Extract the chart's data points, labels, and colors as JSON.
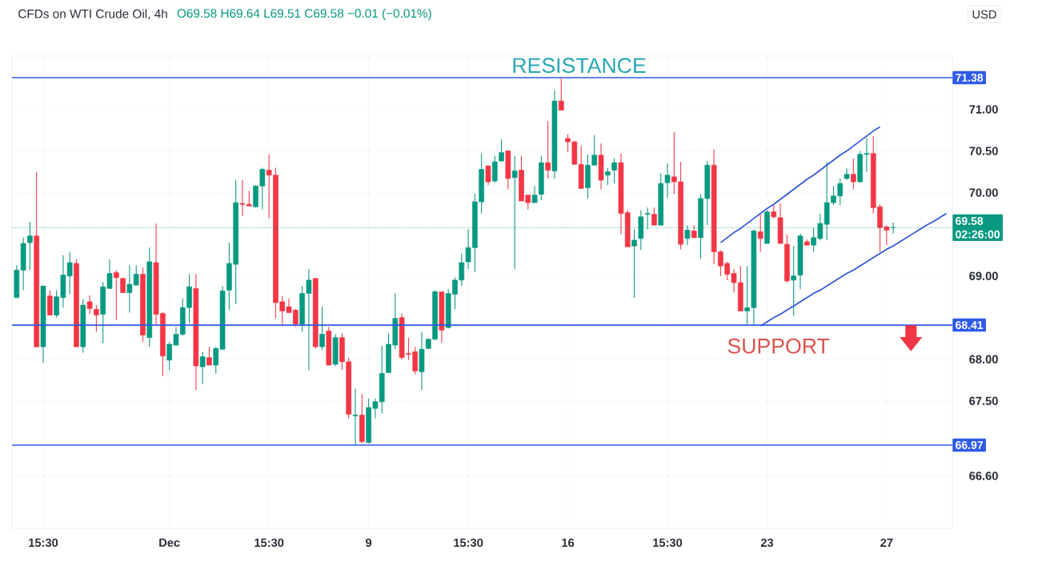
{
  "chart_data": {
    "type": "candlestick",
    "title": "CFDs on WTI Crude Oil, 4h",
    "subtitle": "O69.58 H69.64 L69.51 C69.58 −0.01 (−0.01%)",
    "ylabel": "USD",
    "categories": [
      null,
      null,
      null,
      null,
      "15:30",
      null,
      null,
      null,
      null,
      null,
      null,
      null,
      null,
      null,
      null,
      null,
      null,
      null,
      null,
      null,
      null,
      null,
      null,
      "Dec",
      null,
      null,
      null,
      null,
      null,
      null,
      null,
      null,
      null,
      null,
      null,
      null,
      null,
      null,
      "15:30",
      null,
      null,
      null,
      null,
      null,
      null,
      null,
      null,
      null,
      null,
      null,
      null,
      null,
      null,
      "9",
      null,
      null,
      null,
      null,
      null,
      null,
      null,
      null,
      null,
      null,
      null,
      null,
      null,
      null,
      "15:30",
      null,
      null,
      null,
      null,
      null,
      null,
      null,
      null,
      null,
      null,
      null,
      null,
      null,
      null,
      "16",
      null,
      null,
      null,
      null,
      null,
      null,
      null,
      null,
      null,
      null,
      null,
      null,
      null,
      null,
      "15:30",
      null,
      null,
      null,
      null,
      null,
      null,
      null,
      null,
      null,
      null,
      null,
      null,
      null,
      null,
      "23",
      null,
      null,
      null,
      null,
      null,
      null,
      null,
      null,
      null,
      null,
      null,
      null,
      null,
      null,
      null,
      null,
      null,
      "27",
      null,
      null,
      null,
      null,
      null,
      null,
      null,
      null,
      null
    ],
    "ohlc": [
      [
        68.74,
        69.13,
        68.74,
        69.07
      ],
      [
        69.07,
        69.46,
        68.83,
        69.39
      ],
      [
        69.4,
        69.65,
        69.07,
        69.48
      ],
      [
        69.48,
        70.25,
        68.15,
        68.15
      ],
      [
        68.15,
        68.88,
        67.96,
        68.88
      ],
      [
        68.76,
        68.83,
        68.53,
        68.53
      ],
      [
        68.53,
        68.83,
        68.5,
        68.75
      ],
      [
        68.74,
        69.25,
        68.62,
        69.01
      ],
      [
        69.0,
        69.29,
        68.78,
        69.16
      ],
      [
        69.15,
        69.2,
        68.15,
        68.15
      ],
      [
        68.15,
        68.72,
        68.08,
        68.65
      ],
      [
        68.69,
        68.77,
        68.54,
        68.61
      ],
      [
        68.6,
        68.65,
        68.33,
        68.53
      ],
      [
        68.54,
        68.93,
        68.19,
        68.87
      ],
      [
        68.85,
        69.2,
        68.85,
        69.03
      ],
      [
        69.04,
        69.07,
        68.47,
        68.98
      ],
      [
        68.97,
        68.98,
        68.8,
        68.8
      ],
      [
        68.8,
        69.13,
        68.56,
        68.9
      ],
      [
        68.89,
        69.13,
        68.89,
        69.02
      ],
      [
        69.02,
        69.1,
        68.21,
        68.29
      ],
      [
        68.26,
        69.34,
        68.15,
        69.17
      ],
      [
        69.16,
        69.63,
        68.42,
        68.54
      ],
      [
        68.55,
        68.57,
        67.8,
        68.04
      ],
      [
        67.99,
        68.21,
        67.87,
        68.18
      ],
      [
        68.17,
        68.39,
        68.17,
        68.3
      ],
      [
        68.3,
        68.73,
        68.28,
        68.62
      ],
      [
        68.62,
        69.02,
        68.44,
        68.87
      ],
      [
        68.85,
        69.02,
        67.63,
        67.92
      ],
      [
        67.91,
        68.09,
        67.7,
        68.03
      ],
      [
        68.02,
        68.15,
        67.93,
        67.93
      ],
      [
        67.93,
        68.15,
        67.83,
        68.13
      ],
      [
        68.12,
        68.88,
        68.12,
        68.82
      ],
      [
        68.83,
        69.4,
        68.59,
        69.15
      ],
      [
        69.14,
        70.15,
        68.66,
        69.88
      ],
      [
        69.87,
        70.15,
        69.72,
        69.86
      ],
      [
        69.86,
        70.02,
        69.84,
        69.84
      ],
      [
        69.83,
        70.09,
        69.82,
        70.08
      ],
      [
        70.08,
        70.3,
        69.8,
        70.28
      ],
      [
        70.27,
        70.46,
        69.69,
        70.21
      ],
      [
        70.21,
        70.3,
        68.49,
        68.68
      ],
      [
        68.69,
        68.76,
        68.4,
        68.58
      ],
      [
        68.63,
        68.73,
        68.56,
        68.56
      ],
      [
        68.59,
        68.6,
        68.39,
        68.42
      ],
      [
        68.42,
        68.88,
        68.33,
        68.79
      ],
      [
        68.79,
        69.08,
        67.87,
        68.95
      ],
      [
        68.97,
        68.97,
        68.13,
        68.15
      ],
      [
        68.15,
        68.63,
        68.11,
        68.3
      ],
      [
        68.34,
        68.39,
        67.93,
        67.93
      ],
      [
        67.94,
        68.3,
        67.92,
        68.26
      ],
      [
        68.26,
        68.31,
        67.87,
        67.97
      ],
      [
        67.97,
        68.02,
        67.29,
        67.34
      ],
      [
        67.32,
        67.65,
        66.97,
        67.33
      ],
      [
        67.33,
        67.58,
        66.99,
        67.01
      ],
      [
        67.0,
        67.53,
        66.99,
        67.42
      ],
      [
        67.41,
        67.53,
        67.29,
        67.49
      ],
      [
        67.49,
        68.16,
        67.35,
        67.83
      ],
      [
        67.84,
        68.31,
        67.83,
        68.18
      ],
      [
        68.17,
        68.79,
        68.12,
        68.49
      ],
      [
        68.5,
        68.55,
        68.0,
        68.02
      ],
      [
        68.07,
        68.26,
        67.99,
        68.06
      ],
      [
        68.09,
        68.15,
        67.82,
        67.86
      ],
      [
        67.85,
        68.33,
        67.63,
        68.12
      ],
      [
        68.13,
        68.25,
        68.12,
        68.24
      ],
      [
        68.24,
        68.83,
        68.23,
        68.81
      ],
      [
        68.81,
        68.81,
        68.2,
        68.35
      ],
      [
        68.38,
        68.84,
        68.37,
        68.79
      ],
      [
        68.78,
        68.98,
        68.6,
        68.95
      ],
      [
        68.95,
        69.27,
        68.88,
        69.16
      ],
      [
        69.17,
        69.56,
        69.08,
        69.34
      ],
      [
        69.34,
        69.99,
        69.05,
        69.89
      ],
      [
        69.89,
        70.47,
        69.75,
        70.28
      ],
      [
        70.32,
        70.33,
        70.09,
        70.13
      ],
      [
        70.14,
        70.44,
        70.12,
        70.37
      ],
      [
        70.38,
        70.64,
        70.37,
        70.48
      ],
      [
        70.5,
        70.51,
        70.04,
        70.17
      ],
      [
        70.18,
        70.44,
        69.08,
        70.26
      ],
      [
        70.27,
        70.44,
        69.9,
        69.9
      ],
      [
        69.97,
        69.98,
        69.8,
        69.88
      ],
      [
        69.88,
        70.08,
        69.88,
        69.97
      ],
      [
        69.98,
        70.44,
        69.91,
        70.36
      ],
      [
        70.36,
        70.86,
        70.17,
        70.27
      ],
      [
        70.26,
        71.23,
        70.17,
        71.1
      ],
      [
        71.1,
        71.38,
        70.99,
        70.99
      ],
      [
        70.65,
        70.7,
        70.49,
        70.61
      ],
      [
        70.61,
        70.62,
        70.34,
        70.34
      ],
      [
        70.34,
        70.56,
        70.05,
        70.05
      ],
      [
        70.06,
        70.46,
        69.93,
        70.33
      ],
      [
        70.33,
        70.69,
        70.33,
        70.45
      ],
      [
        70.45,
        70.59,
        70.04,
        70.15
      ],
      [
        70.21,
        70.3,
        70.09,
        70.25
      ],
      [
        70.27,
        70.41,
        70.11,
        70.36
      ],
      [
        70.36,
        70.47,
        69.5,
        69.75
      ],
      [
        69.76,
        69.79,
        69.35,
        69.35
      ],
      [
        69.36,
        69.56,
        68.74,
        69.43
      ],
      [
        69.45,
        69.79,
        69.31,
        69.71
      ],
      [
        69.74,
        69.82,
        69.56,
        69.75
      ],
      [
        69.74,
        69.82,
        69.61,
        69.61
      ],
      [
        69.61,
        70.23,
        69.61,
        70.11
      ],
      [
        70.12,
        70.35,
        69.94,
        70.21
      ],
      [
        70.19,
        70.73,
        69.98,
        70.13
      ],
      [
        70.13,
        70.37,
        69.32,
        69.38
      ],
      [
        69.45,
        69.61,
        69.37,
        69.55
      ],
      [
        69.54,
        69.61,
        69.46,
        69.46
      ],
      [
        69.46,
        69.98,
        69.21,
        69.93
      ],
      [
        69.93,
        70.38,
        69.61,
        70.33
      ],
      [
        70.33,
        70.52,
        69.14,
        69.29
      ],
      [
        69.29,
        69.31,
        69.0,
        69.12
      ],
      [
        69.15,
        69.17,
        68.95,
        69.02
      ],
      [
        69.03,
        69.08,
        68.8,
        68.92
      ],
      [
        68.92,
        69.12,
        68.58,
        68.58
      ],
      [
        68.58,
        69.12,
        68.41,
        68.62
      ],
      [
        68.62,
        69.56,
        68.41,
        69.54
      ],
      [
        69.53,
        69.74,
        69.29,
        69.45
      ],
      [
        69.39,
        69.79,
        69.39,
        69.77
      ],
      [
        69.77,
        69.85,
        69.69,
        69.71
      ],
      [
        69.7,
        69.87,
        69.39,
        69.39
      ],
      [
        69.38,
        69.5,
        68.92,
        68.94
      ],
      [
        68.95,
        69.36,
        68.52,
        69.0
      ],
      [
        69.01,
        69.51,
        68.84,
        69.48
      ],
      [
        69.41,
        69.44,
        69.37,
        69.37
      ],
      [
        69.37,
        69.58,
        69.29,
        69.46
      ],
      [
        69.45,
        69.75,
        69.43,
        69.63
      ],
      [
        69.62,
        70.37,
        69.43,
        69.88
      ],
      [
        69.88,
        70.08,
        69.85,
        69.96
      ],
      [
        69.96,
        70.17,
        69.85,
        70.11
      ],
      [
        70.17,
        70.29,
        70.15,
        70.22
      ],
      [
        70.22,
        70.41,
        70.04,
        70.13
      ],
      [
        70.13,
        70.5,
        70.12,
        70.46
      ],
      [
        70.46,
        70.66,
        70.25,
        70.47
      ],
      [
        70.47,
        70.68,
        69.75,
        69.82
      ],
      [
        69.83,
        69.86,
        69.29,
        69.58
      ],
      [
        69.59,
        69.61,
        69.37,
        69.55
      ],
      [
        69.58,
        69.64,
        69.51,
        69.58
      ],
      null,
      null,
      null,
      null,
      null,
      null,
      null,
      null
    ],
    "series": [
      {
        "type": "line",
        "color": "#3057d5",
        "values": [
          null,
          null,
          null,
          null,
          null,
          null,
          null,
          null,
          null,
          null,
          null,
          null,
          null,
          null,
          null,
          null,
          null,
          null,
          null,
          null,
          null,
          null,
          null,
          null,
          null,
          null,
          null,
          null,
          null,
          null,
          null,
          null,
          null,
          null,
          null,
          null,
          null,
          null,
          null,
          null,
          null,
          null,
          null,
          null,
          null,
          null,
          null,
          null,
          null,
          null,
          null,
          null,
          null,
          null,
          null,
          null,
          null,
          null,
          null,
          null,
          null,
          null,
          null,
          null,
          null,
          null,
          null,
          null,
          null,
          null,
          null,
          null,
          null,
          null,
          null,
          null,
          null,
          null,
          null,
          null,
          null,
          null,
          null,
          null,
          null,
          null,
          null,
          null,
          null,
          null,
          null,
          null,
          null,
          null,
          null,
          null,
          null,
          null,
          null,
          null,
          null,
          null,
          null,
          null,
          null,
          null,
          69.4,
          69.46,
          69.52,
          69.57,
          69.63,
          69.69,
          69.75,
          69.81,
          69.86,
          69.92,
          69.98,
          70.04,
          70.1,
          70.16,
          70.21,
          70.27,
          70.33,
          70.39,
          70.45,
          70.5,
          70.56,
          70.62,
          70.68,
          70.74,
          70.79,
          null,
          null,
          null,
          null,
          null,
          null,
          null,
          null,
          null,
          null
        ]
      },
      {
        "type": "line",
        "color": "#3057d5",
        "values": [
          null,
          null,
          null,
          null,
          null,
          null,
          null,
          null,
          null,
          null,
          null,
          null,
          null,
          null,
          null,
          null,
          null,
          null,
          null,
          null,
          null,
          null,
          null,
          null,
          null,
          null,
          null,
          null,
          null,
          null,
          null,
          null,
          null,
          null,
          null,
          null,
          null,
          null,
          null,
          null,
          null,
          null,
          null,
          null,
          null,
          null,
          null,
          null,
          null,
          null,
          null,
          null,
          null,
          null,
          null,
          null,
          null,
          null,
          null,
          null,
          null,
          null,
          null,
          null,
          null,
          null,
          null,
          null,
          null,
          null,
          null,
          null,
          null,
          null,
          null,
          null,
          null,
          null,
          null,
          null,
          null,
          null,
          null,
          null,
          null,
          null,
          null,
          null,
          null,
          null,
          null,
          null,
          null,
          null,
          null,
          null,
          null,
          null,
          null,
          null,
          null,
          null,
          null,
          null,
          null,
          null,
          null,
          null,
          null,
          null,
          null,
          null,
          68.4,
          68.45,
          68.5,
          68.54,
          68.59,
          68.64,
          68.69,
          68.74,
          68.79,
          68.83,
          68.88,
          68.93,
          68.98,
          69.03,
          69.07,
          69.12,
          69.17,
          69.22,
          69.27,
          69.32,
          69.36,
          69.41,
          69.46,
          69.51,
          69.56,
          69.61,
          69.65,
          69.7,
          69.75
        ]
      }
    ],
    "ylim": [
      65.97,
      71.64
    ],
    "yticks": [
      {
        "value": 71,
        "label": "71.00"
      },
      {
        "value": 70.5,
        "label": "70.50"
      },
      {
        "value": 70,
        "label": "70.00"
      },
      {
        "value": 69,
        "label": "69.00"
      },
      {
        "value": 68,
        "label": "68.00"
      },
      {
        "value": 67.5,
        "label": "67.50"
      },
      {
        "value": 66.6,
        "label": "66.60"
      }
    ],
    "ref_lines": [
      {
        "axis": "y",
        "value": 71.38,
        "label": "71.38",
        "color": "#2f5bea"
      },
      {
        "axis": "y",
        "value": 68.41,
        "label": "68.41",
        "color": "#2f5bea"
      },
      {
        "axis": "y",
        "value": 66.97,
        "label": "66.97",
        "color": "#2f5bea"
      },
      {
        "axis": "y",
        "value": 69.58,
        "label": "69.58",
        "color": "#089981",
        "line_style": "dotted"
      }
    ],
    "annotations": [
      "RESISTANCE",
      "SUPPORT",
      "02:26:00"
    ],
    "grid": true
  }
}
